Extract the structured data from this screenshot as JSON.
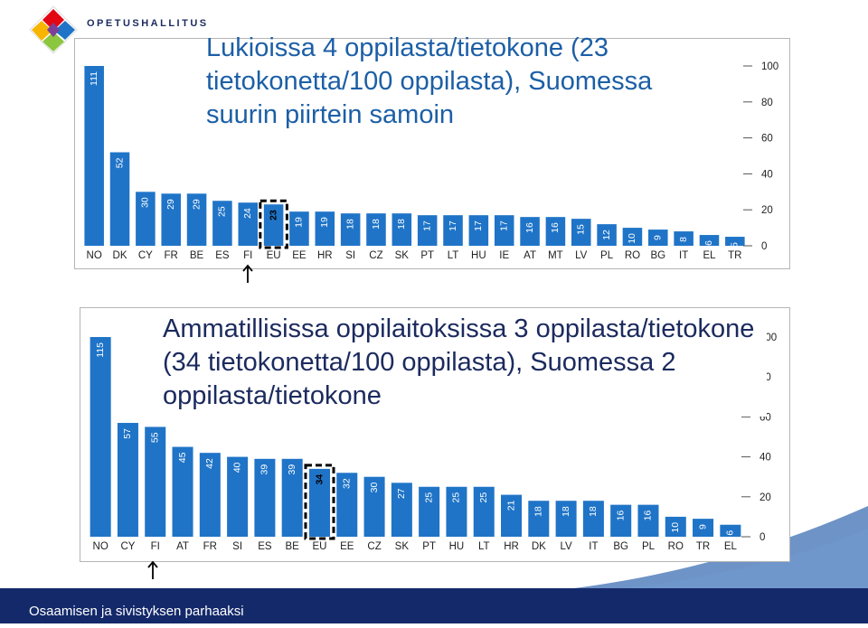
{
  "header": {
    "org_name": "OPETUSHALLITUS"
  },
  "slide": {
    "title_upper": "Lukioissa 4 oppilasta/tietokone (23 tietokonetta/100 oppilasta), Suomessa suurin piirtein samoin",
    "title_lower": "Ammatillisissa oppilaitoksissa 3 oppilasta/tietokone (34 tietokonetta/100 oppilasta), Suomessa 2 oppilasta/tietokone"
  },
  "footer": {
    "text": "Osaamisen ja sivistyksen parhaaksi"
  },
  "colors": {
    "bar": "#1f74c7",
    "title": "#1c5fa6",
    "footer": "#14296a",
    "frame": "#b5b5b5"
  },
  "icons": {
    "logo": "opetushallitus-diamond-logo",
    "pointer": "arrow-up-icon"
  },
  "chart_data": [
    {
      "type": "bar",
      "categories": [
        "NO",
        "DK",
        "CY",
        "FR",
        "BE",
        "ES",
        "FI",
        "EU",
        "EE",
        "HR",
        "SI",
        "CZ",
        "SK",
        "PT",
        "LT",
        "HU",
        "IE",
        "AT",
        "MT",
        "LV",
        "PL",
        "RO",
        "BG",
        "IT",
        "EL",
        "TR"
      ],
      "values": [
        111,
        52,
        30,
        29,
        29,
        25,
        24,
        23,
        19,
        19,
        18,
        18,
        18,
        17,
        17,
        17,
        17,
        16,
        16,
        15,
        12,
        10,
        9,
        8,
        6,
        5
      ],
      "ylim": [
        0,
        100
      ],
      "yticks": [
        0,
        20,
        40,
        60,
        80,
        100
      ],
      "highlight": "EU",
      "grid": false,
      "axis_side": "right"
    },
    {
      "type": "bar",
      "categories": [
        "NO",
        "CY",
        "FI",
        "AT",
        "FR",
        "SI",
        "ES",
        "BE",
        "EU",
        "EE",
        "CZ",
        "SK",
        "PT",
        "HU",
        "LT",
        "HR",
        "DK",
        "LV",
        "IT",
        "BG",
        "PL",
        "RO",
        "TR",
        "EL"
      ],
      "values": [
        115,
        57,
        55,
        45,
        42,
        40,
        39,
        39,
        34,
        32,
        30,
        27,
        25,
        25,
        25,
        21,
        18,
        18,
        18,
        16,
        16,
        10,
        9,
        6
      ],
      "ylim": [
        0,
        100
      ],
      "yticks": [
        0,
        20,
        40,
        60,
        80,
        100
      ],
      "highlight": "EU",
      "grid": false,
      "axis_side": "right"
    }
  ]
}
